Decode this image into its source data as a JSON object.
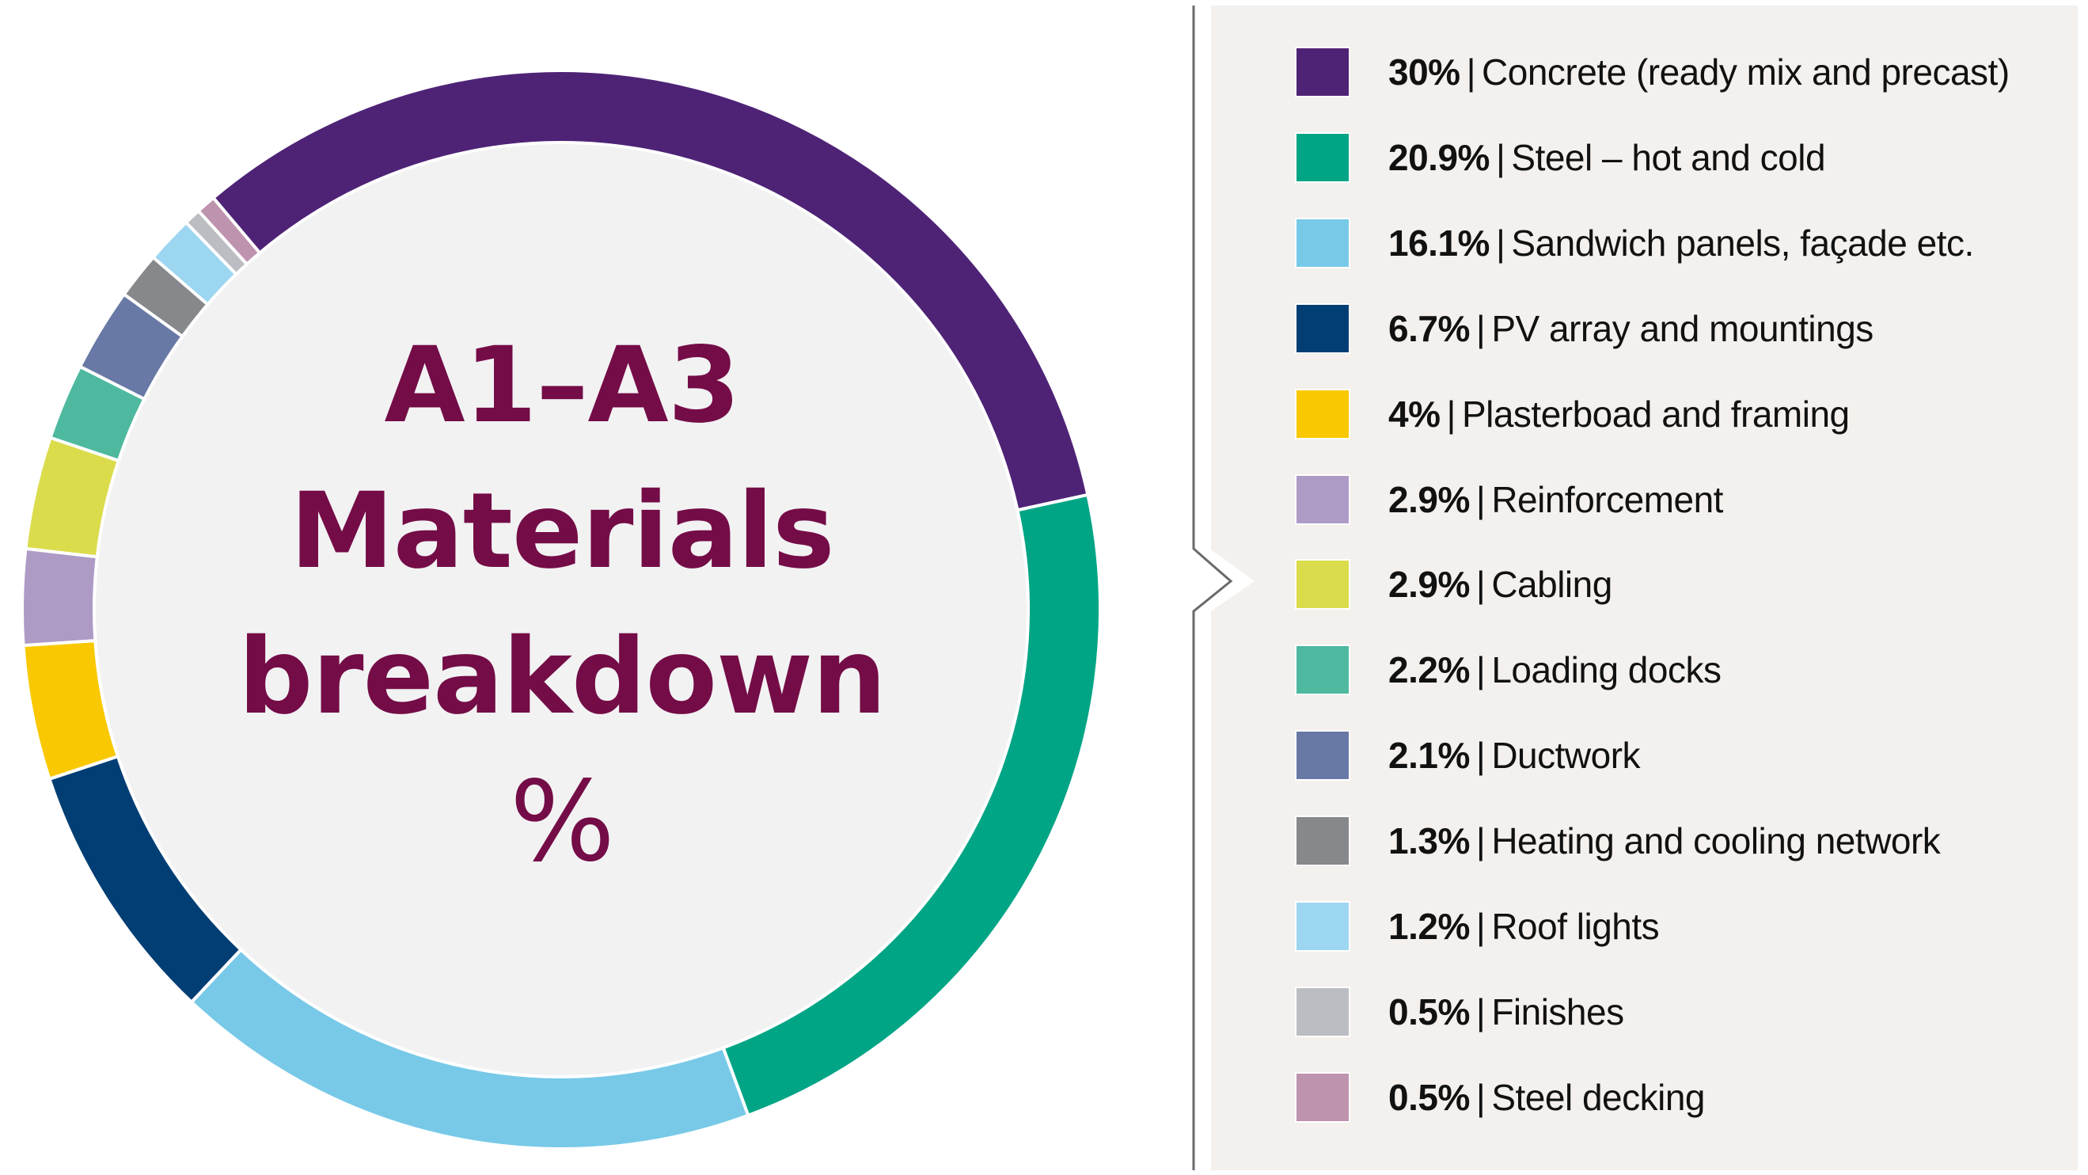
{
  "center": {
    "line1": "A1–A3",
    "line2": "Materials",
    "line3": "breakdown",
    "line4": "%"
  },
  "legend": {
    "separator": "|",
    "items": [
      {
        "value": "30%",
        "label": "Concrete (ready mix and precast)",
        "color": "#4E2376"
      },
      {
        "value": "20.9%",
        "label": "Steel – hot and cold",
        "color": "#00A585"
      },
      {
        "value": "16.1%",
        "label": "Sandwich panels, façade etc.",
        "color": "#78C9E8"
      },
      {
        "value": "6.7%",
        "label": "PV array and mountings",
        "color": "#003E74"
      },
      {
        "value": "4%",
        "label": "Plasterboad and framing",
        "color": "#F9C800"
      },
      {
        "value": "2.9%",
        "label": "Reinforcement",
        "color": "#AD9BC6"
      },
      {
        "value": "2.9%",
        "label": "Cabling",
        "color": "#DBDC4C"
      },
      {
        "value": "2.2%",
        "label": "Loading docks",
        "color": "#4EB99F"
      },
      {
        "value": "2.1%",
        "label": "Ductwork",
        "color": "#6879A6"
      },
      {
        "value": "1.3%",
        "label": "Heating and cooling network",
        "color": "#87888C"
      },
      {
        "value": "1.2%",
        "label": "Roof lights",
        "color": "#9DD6F0"
      },
      {
        "value": "0.5%",
        "label": "Finishes",
        "color": "#BCBDC2"
      },
      {
        "value": "0.5%",
        "label": "Steel decking",
        "color": "#BE93AE"
      }
    ]
  },
  "colors": {
    "title": "#740C47",
    "inner_fill": "#F2F2F3",
    "panel_bg": "#F3F0ED",
    "divider": "#6A6A6C"
  },
  "chart_data": {
    "type": "pie",
    "subtype": "donut",
    "title": "A1–A3 Materials breakdown %",
    "categories": [
      "Concrete (ready mix and precast)",
      "Steel – hot and cold",
      "Sandwich panels, façade etc.",
      "PV array and mountings",
      "Plasterboad and framing",
      "Reinforcement",
      "Cabling",
      "Loading docks",
      "Ductwork",
      "Heating and cooling network",
      "Roof lights",
      "Finishes",
      "Steel decking"
    ],
    "values": [
      30,
      20.9,
      16.1,
      6.7,
      4,
      2.9,
      2.9,
      2.2,
      2.1,
      1.3,
      1.2,
      0.5,
      0.5
    ],
    "colors": [
      "#4E2376",
      "#00A585",
      "#78C9E8",
      "#003E74",
      "#F9C800",
      "#AD9BC6",
      "#DBDC4C",
      "#4EB99F",
      "#6879A6",
      "#87888C",
      "#9DD6F0",
      "#BCBDC2",
      "#BE93AE"
    ],
    "units": "%",
    "legend_position": "right",
    "drawn_boundaries_deg_clockwise_from_top": [
      319.8,
      77.7,
      159.7,
      223.3,
      251.7,
      266.2,
      276.5,
      288.6,
      296.8,
      305.8,
      310.8,
      315.9,
      317.7,
      319.8
    ]
  }
}
